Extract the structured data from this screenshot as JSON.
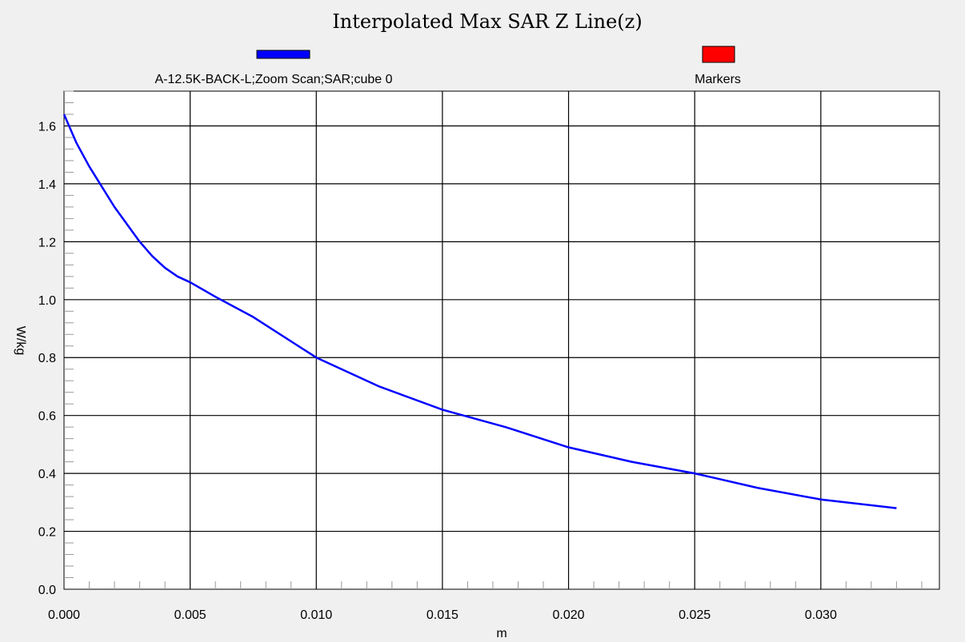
{
  "chart_data": {
    "type": "line",
    "title": "Interpolated Max SAR Z Line(z)",
    "xlabel": "m",
    "ylabel": "W/kg",
    "xlim": [
      0.0,
      0.0347
    ],
    "ylim": [
      0.0,
      1.72
    ],
    "x_ticks": [
      "0.000",
      "0.005",
      "0.010",
      "0.015",
      "0.020",
      "0.025",
      "0.030"
    ],
    "y_ticks": [
      "0.0",
      "0.2",
      "0.4",
      "0.6",
      "0.8",
      "1.0",
      "1.2",
      "1.4",
      "1.6"
    ],
    "grid": true,
    "legend_position": "top",
    "series": [
      {
        "name": "A-12.5K-BACK-L;Zoom Scan;SAR;cube 0",
        "color": "#0000ff",
        "x": [
          0.0,
          0.0005,
          0.001,
          0.0015,
          0.002,
          0.0025,
          0.003,
          0.0035,
          0.004,
          0.0045,
          0.005,
          0.006,
          0.0075,
          0.01,
          0.0125,
          0.015,
          0.0175,
          0.02,
          0.0225,
          0.025,
          0.0275,
          0.03,
          0.033
        ],
        "y": [
          1.64,
          1.54,
          1.46,
          1.39,
          1.32,
          1.26,
          1.2,
          1.15,
          1.11,
          1.08,
          1.06,
          1.01,
          0.94,
          0.8,
          0.7,
          0.62,
          0.56,
          0.49,
          0.44,
          0.4,
          0.35,
          0.31,
          0.28
        ]
      },
      {
        "name": "Markers",
        "color": "#ff0000",
        "x": [],
        "y": []
      }
    ]
  },
  "colors": {
    "background": "#f0f0f0",
    "plot_background": "#ffffff",
    "grid": "#000000",
    "line": "#0000ff",
    "markers": "#ff0000"
  }
}
